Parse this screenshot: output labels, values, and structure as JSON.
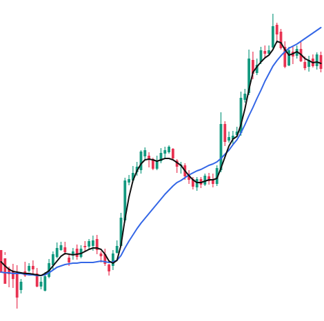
{
  "chart_data": {
    "type": "candlestick",
    "title": "",
    "xlabel": "",
    "ylabel": "",
    "grid": false,
    "legend": "none",
    "ylim": [
      0,
      466
    ],
    "colors": {
      "up": "#13997f",
      "down": "#e83352",
      "ma_short": "#111111",
      "ma_long": "#3366e6",
      "background": "#ffffff"
    },
    "candles": [
      [
        0,
        396,
        363,
        386,
        368
      ],
      [
        0,
        375,
        412,
        370,
        366
      ],
      [
        0,
        398,
        390,
        417,
        387
      ],
      [
        0,
        393,
        405,
        418,
        383
      ],
      [
        0,
        396,
        432,
        448,
        385
      ],
      [
        1,
        421,
        409,
        426,
        405
      ],
      [
        0,
        394,
        400,
        402,
        380
      ],
      [
        1,
        393,
        386,
        395,
        382
      ],
      [
        0,
        391,
        386,
        398,
        378
      ],
      [
        0,
        397,
        416,
        417,
        389
      ],
      [
        1,
        416,
        409,
        420,
        402
      ],
      [
        1,
        422,
        401,
        423,
        395
      ],
      [
        1,
        402,
        382,
        404,
        376
      ],
      [
        1,
        385,
        369,
        392,
        365
      ],
      [
        1,
        373,
        360,
        375,
        352
      ],
      [
        1,
        363,
        356,
        364,
        351
      ],
      [
        0,
        359,
        366,
        370,
        351
      ],
      [
        0,
        374,
        381,
        386,
        370
      ],
      [
        1,
        369,
        365,
        377,
        360
      ],
      [
        0,
        361,
        373,
        377,
        355
      ],
      [
        1,
        373,
        361,
        375,
        356
      ],
      [
        0,
        357,
        359,
        366,
        350
      ],
      [
        1,
        358,
        350,
        362,
        347
      ],
      [
        1,
        357,
        349,
        364,
        342
      ],
      [
        0,
        347,
        363,
        369,
        341
      ],
      [
        0,
        368,
        372,
        381,
        365
      ],
      [
        0,
        369,
        383,
        386,
        361
      ],
      [
        0,
        384,
        394,
        400,
        383
      ],
      [
        1,
        386,
        368,
        392,
        363
      ],
      [
        1,
        367,
        357,
        368,
        349
      ],
      [
        1,
        357,
        316,
        357,
        309
      ],
      [
        1,
        320,
        262,
        323,
        258
      ],
      [
        1,
        265,
        260,
        269,
        254
      ],
      [
        1,
        262,
        251,
        265,
        241
      ],
      [
        1,
        250,
        242,
        255,
        235
      ],
      [
        1,
        247,
        220,
        252,
        218
      ],
      [
        1,
        227,
        218,
        233,
        214
      ],
      [
        0,
        226,
        232,
        243,
        221
      ],
      [
        0,
        231,
        245,
        247,
        229
      ],
      [
        1,
        245,
        234,
        247,
        226
      ],
      [
        1,
        234,
        222,
        237,
        215
      ],
      [
        1,
        223,
        218,
        230,
        213
      ],
      [
        1,
        221,
        213,
        223,
        211
      ],
      [
        0,
        216,
        230,
        232,
        215
      ],
      [
        0,
        233,
        242,
        251,
        231
      ],
      [
        1,
        241,
        239,
        252,
        235
      ],
      [
        0,
        240,
        256,
        261,
        237
      ],
      [
        0,
        253,
        261,
        267,
        247
      ],
      [
        0,
        260,
        271,
        275,
        257
      ],
      [
        1,
        272,
        260,
        277,
        257
      ],
      [
        0,
        260,
        268,
        273,
        257
      ],
      [
        1,
        268,
        255,
        270,
        252
      ],
      [
        0,
        256,
        263,
        268,
        251
      ],
      [
        0,
        260,
        267,
        272,
        252
      ],
      [
        1,
        267,
        244,
        270,
        240
      ],
      [
        1,
        247,
        180,
        250,
        163
      ],
      [
        0,
        180,
        206,
        212,
        176
      ],
      [
        1,
        204,
        199,
        207,
        191
      ],
      [
        1,
        202,
        197,
        211,
        190
      ],
      [
        1,
        196,
        191,
        198,
        184
      ],
      [
        1,
        193,
        142,
        197,
        133
      ],
      [
        1,
        145,
        136,
        149,
        129
      ],
      [
        1,
        135,
        85,
        138,
        72
      ],
      [
        0,
        87,
        107,
        115,
        75
      ],
      [
        1,
        106,
        94,
        109,
        85
      ],
      [
        1,
        90,
        73,
        93,
        68
      ],
      [
        0,
        74,
        78,
        84,
        66
      ],
      [
        1,
        78,
        73,
        81,
        66
      ],
      [
        1,
        69,
        38,
        72,
        20
      ],
      [
        0,
        36,
        50,
        63,
        33
      ],
      [
        0,
        46,
        70,
        72,
        42
      ],
      [
        0,
        68,
        97,
        99,
        60
      ],
      [
        1,
        95,
        73,
        96,
        68
      ],
      [
        0,
        75,
        82,
        93,
        67
      ],
      [
        1,
        81,
        71,
        85,
        66
      ],
      [
        0,
        71,
        89,
        90,
        60
      ],
      [
        0,
        90,
        99,
        102,
        82
      ],
      [
        1,
        97,
        87,
        104,
        81
      ],
      [
        0,
        85,
        96,
        98,
        79
      ],
      [
        1,
        96,
        79,
        101,
        76
      ],
      [
        0,
        80,
        100,
        105,
        75
      ]
    ],
    "ma_short": [
      380,
      386,
      391,
      394,
      395,
      396,
      397,
      397,
      398,
      399,
      400,
      397,
      393,
      386,
      379,
      372,
      368,
      369,
      370,
      369,
      368,
      365,
      362,
      360,
      360,
      362,
      369,
      379,
      382,
      378,
      356,
      318,
      286,
      262,
      248,
      238,
      232,
      231,
      232,
      234,
      232,
      230,
      230,
      232,
      236,
      240,
      248,
      255,
      261,
      265,
      265,
      263,
      261,
      261,
      259,
      244,
      228,
      212,
      202,
      198,
      181,
      158,
      130,
      105,
      97,
      90,
      84,
      80,
      72,
      60,
      62,
      72,
      80,
      78,
      75,
      79,
      85,
      88,
      91,
      90,
      92
    ],
    "ma_long": [
      395,
      396,
      396,
      397,
      397,
      397,
      398,
      399,
      399,
      400,
      400,
      399,
      396,
      392,
      388,
      386,
      384,
      383,
      382,
      382,
      381,
      381,
      381,
      381,
      380,
      379,
      380,
      381,
      380,
      378,
      371,
      360,
      350,
      341,
      332,
      324,
      317,
      310,
      303,
      296,
      289,
      282,
      276,
      270,
      265,
      262,
      258,
      254,
      251,
      248,
      246,
      243,
      240,
      238,
      235,
      230,
      224,
      218,
      210,
      203,
      193,
      181,
      168,
      156,
      143,
      131,
      118,
      107,
      96,
      88,
      81,
      75,
      70,
      67,
      64,
      60,
      56,
      52,
      48,
      44,
      40
    ]
  }
}
